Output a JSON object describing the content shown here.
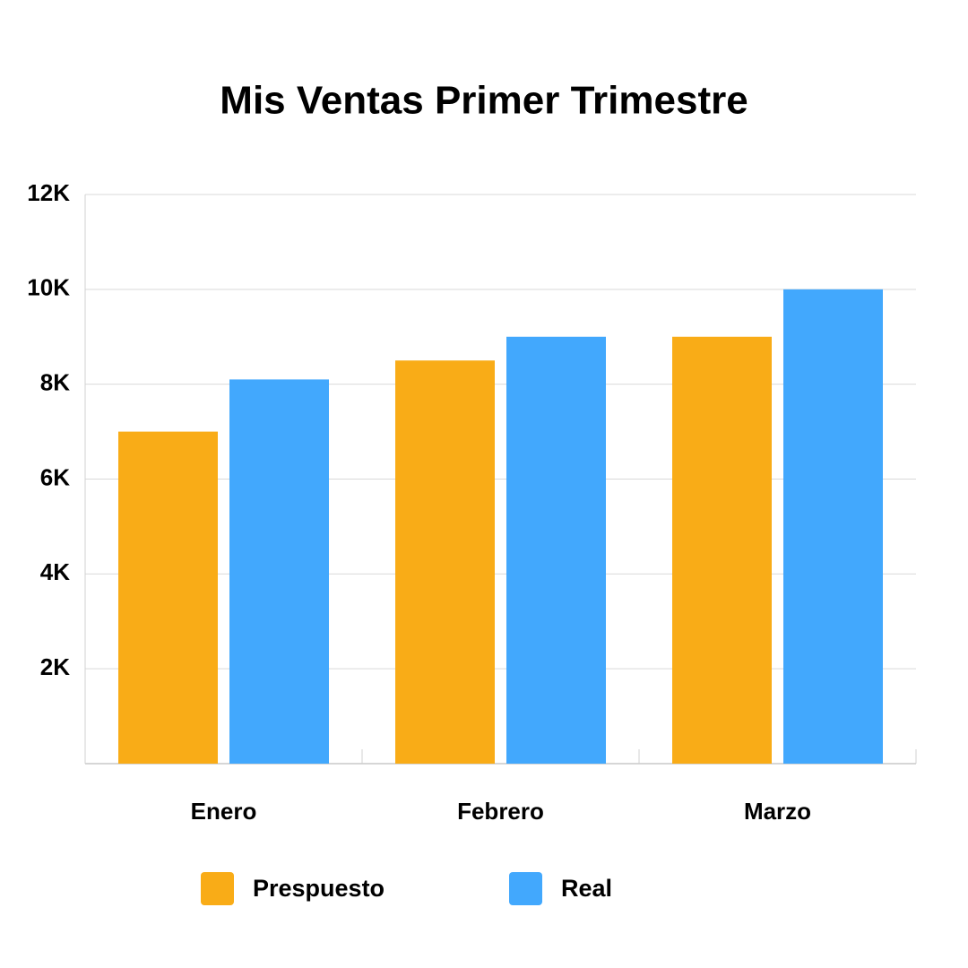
{
  "chart_data": {
    "type": "bar",
    "title": "Mis Ventas Primer Trimestre",
    "categories": [
      "Enero",
      "Febrero",
      "Marzo"
    ],
    "series": [
      {
        "name": "Prespuesto",
        "color": "#f9ac17",
        "values": [
          7000,
          8500,
          9000
        ]
      },
      {
        "name": "Real",
        "color": "#42a8fd",
        "values": [
          8100,
          9000,
          10000
        ]
      }
    ],
    "ylim": [
      0,
      12000
    ],
    "yticks": [
      {
        "value": 2000,
        "label": "2K"
      },
      {
        "value": 4000,
        "label": "4K"
      },
      {
        "value": 6000,
        "label": "6K"
      },
      {
        "value": 8000,
        "label": "8K"
      },
      {
        "value": 10000,
        "label": "10K"
      },
      {
        "value": 12000,
        "label": "12K"
      }
    ],
    "grid": true
  }
}
